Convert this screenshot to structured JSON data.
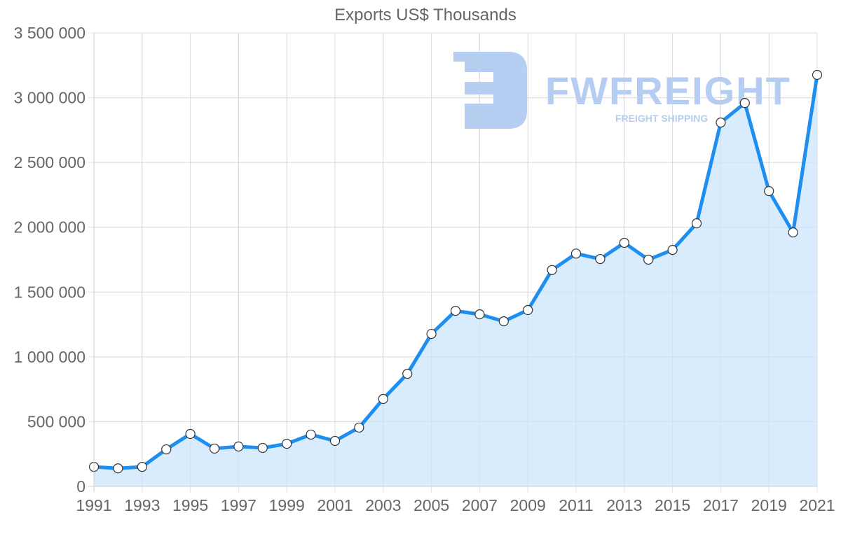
{
  "chart_data": {
    "type": "line",
    "title": "Exports US$ Thousands",
    "xlabel": "",
    "ylabel": "",
    "categories": [
      "1991",
      "1992",
      "1993",
      "1994",
      "1995",
      "1996",
      "1997",
      "1998",
      "1999",
      "2000",
      "2001",
      "2002",
      "2003",
      "2004",
      "2005",
      "2006",
      "2007",
      "2008",
      "2009",
      "2010",
      "2011",
      "2012",
      "2013",
      "2014",
      "2015",
      "2016",
      "2017",
      "2018",
      "2019",
      "2020",
      "2021"
    ],
    "series": [
      {
        "name": "Exports US$ Thousands",
        "values": [
          151000,
          139000,
          151000,
          286000,
          405000,
          292000,
          308000,
          297000,
          329000,
          400000,
          351000,
          454000,
          675000,
          869000,
          1177000,
          1355000,
          1328000,
          1274000,
          1361000,
          1670000,
          1797000,
          1755000,
          1880000,
          1750000,
          1825000,
          2030000,
          2808000,
          2959000,
          2279000,
          1960000,
          3176000
        ],
        "line_color": "#1e8ef0",
        "fill_color": "#d9ecfd",
        "point_fill": "#ffffff",
        "point_stroke": "#333333",
        "fill": true
      }
    ],
    "ylim": [
      0,
      3500000
    ],
    "y_ticks": [
      0,
      500000,
      1000000,
      1500000,
      2000000,
      2500000,
      3000000,
      3500000
    ],
    "y_tick_labels": [
      "0",
      "500 000",
      "1 000 000",
      "1 500 000",
      "2 000 000",
      "2 500 000",
      "3 000 000",
      "3 500 000"
    ],
    "x_tick_labels": [
      "1991",
      "1993",
      "1995",
      "1997",
      "1999",
      "2001",
      "2003",
      "2005",
      "2007",
      "2009",
      "2011",
      "2013",
      "2015",
      "2017",
      "2019",
      "2021"
    ],
    "grid": true,
    "legend": null
  },
  "watermark": {
    "brand": "FWFREIGHT",
    "tagline": "FREIGHT SHIPPING",
    "color": "#a9c5f0"
  }
}
